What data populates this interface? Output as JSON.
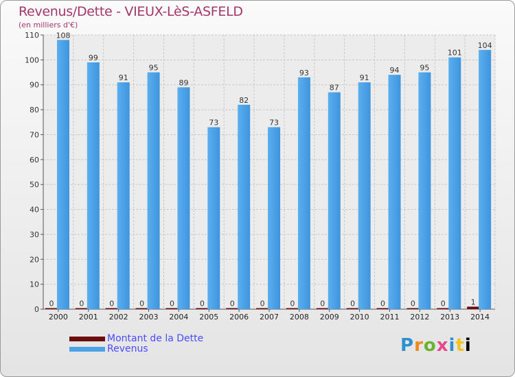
{
  "chart_data": {
    "type": "bar",
    "title": "Revenus/Dette - VIEUX-LèS-ASFELD",
    "subtitle": "(en milliers d'€)",
    "categories": [
      "2000",
      "2001",
      "2002",
      "2003",
      "2004",
      "2005",
      "2006",
      "2007",
      "2008",
      "2009",
      "2010",
      "2011",
      "2012",
      "2013",
      "2014"
    ],
    "series": [
      {
        "name": "Montant de la Dette",
        "color": "#6b0d0d",
        "values": [
          0,
          0,
          0,
          0,
          0,
          0,
          0,
          0,
          0,
          0,
          0,
          0,
          0,
          0,
          1
        ]
      },
      {
        "name": "Revenus",
        "color": "#4da3e8",
        "values": [
          108,
          99,
          91,
          95,
          89,
          73,
          82,
          73,
          93,
          87,
          91,
          94,
          95,
          101,
          104
        ]
      }
    ],
    "ylim": [
      0,
      110
    ],
    "yticks": [
      0,
      10,
      20,
      30,
      40,
      50,
      60,
      70,
      80,
      90,
      100,
      110
    ],
    "grid": true,
    "legend_position": "bottom-left"
  },
  "brand": {
    "letters": [
      "P",
      "r",
      "o",
      "x",
      "i",
      "t",
      "i"
    ]
  }
}
